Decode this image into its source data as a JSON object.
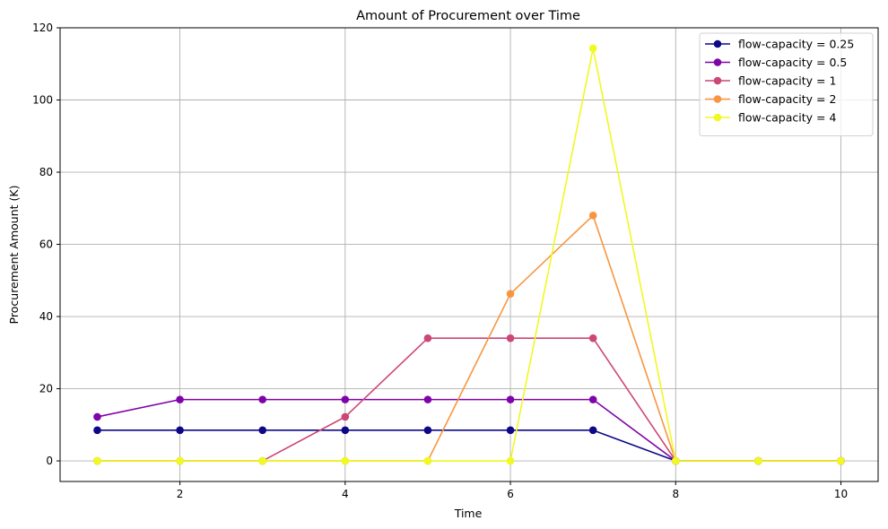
{
  "chart_data": {
    "type": "line",
    "title": "Amount of Procurement over Time",
    "xlabel": "Time",
    "ylabel": "Procurement Amount (K)",
    "x": [
      1,
      2,
      3,
      4,
      5,
      6,
      7,
      8,
      9,
      10
    ],
    "xlim": [
      0.55,
      10.45
    ],
    "ylim": [
      -5.7,
      120
    ],
    "xticks": [
      2,
      4,
      6,
      8,
      10
    ],
    "yticks": [
      0,
      20,
      40,
      60,
      80,
      100,
      120
    ],
    "grid": true,
    "legend_position": "top-right",
    "series": [
      {
        "name": "flow-capacity = 0.25",
        "color": "#0d0887",
        "values": [
          8.5,
          8.5,
          8.5,
          8.5,
          8.5,
          8.5,
          8.5,
          0,
          0,
          0
        ]
      },
      {
        "name": "flow-capacity = 0.5",
        "color": "#7e03a8",
        "values": [
          12.2,
          17,
          17,
          17,
          17,
          17,
          17,
          0,
          0,
          0
        ]
      },
      {
        "name": "flow-capacity = 1",
        "color": "#cc4778",
        "values": [
          0,
          0,
          0,
          12.2,
          34,
          34,
          34,
          0,
          0,
          0
        ]
      },
      {
        "name": "flow-capacity = 2",
        "color": "#f89540",
        "values": [
          0,
          0,
          0,
          0,
          0,
          46.3,
          68,
          0,
          0,
          0
        ]
      },
      {
        "name": "flow-capacity = 4",
        "color": "#f0f921",
        "values": [
          0,
          0,
          0,
          0,
          0,
          0,
          114.3,
          0,
          0,
          0
        ]
      }
    ]
  }
}
